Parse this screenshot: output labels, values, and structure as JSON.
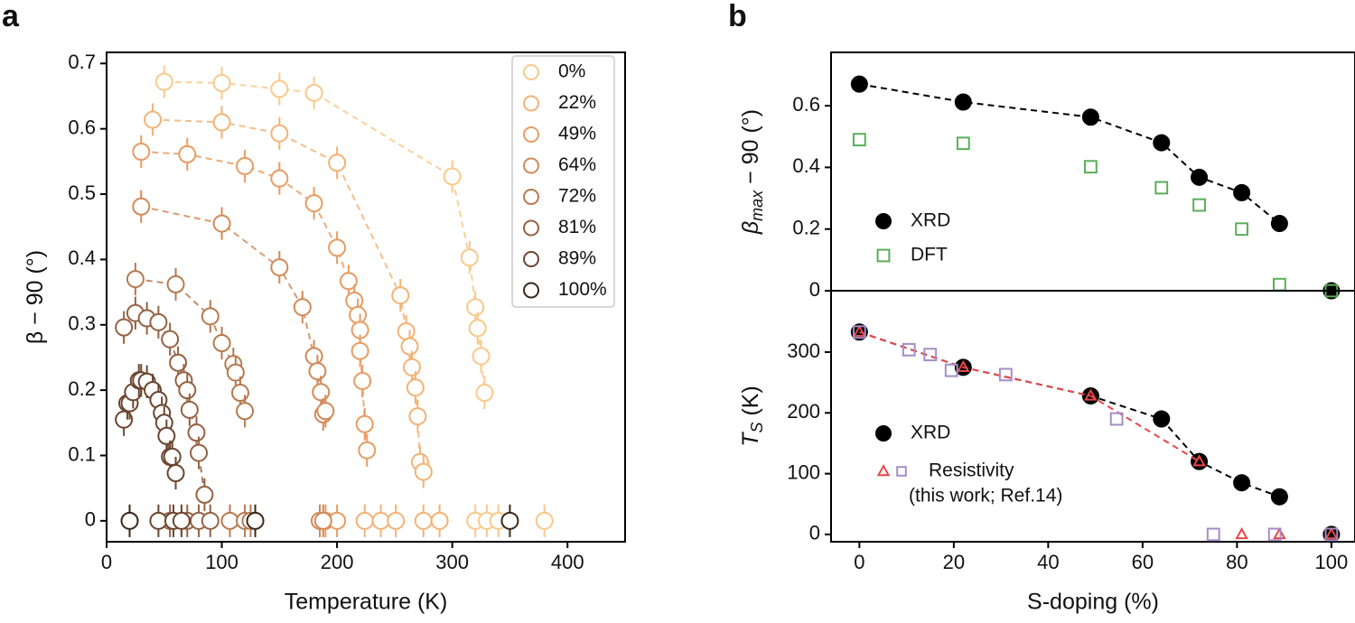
{
  "chart_data": [
    {
      "type": "scatter",
      "panel_label": "a",
      "xlabel": "Temperature (K)",
      "ylabel": "β − 90 (°)",
      "xlim": [
        0,
        450
      ],
      "ylim": [
        -0.032,
        0.717
      ],
      "xticks": [
        0,
        100,
        200,
        300,
        400
      ],
      "yticks": [
        0.0,
        {
          "value": 0.1,
          "label": "0.1"
        },
        {
          "value": 0.2,
          "label": "0.2"
        },
        {
          "value": 0.3,
          "label": "0.3"
        },
        {
          "value": 0.4,
          "label": "0.4"
        },
        {
          "value": 0.5,
          "label": "0.5"
        },
        {
          "value": 0.6,
          "label": "0.6"
        },
        {
          "value": 0.7,
          "label": "0.7"
        }
      ],
      "legend": "upper right",
      "series": [
        {
          "name": "0%",
          "color": "#f9c98a",
          "marker": "circle",
          "fill": "#ffffff",
          "line": "dashed",
          "yerr": 0.025,
          "x": [
            50,
            100,
            150,
            180,
            300,
            315,
            320,
            322,
            325,
            328,
            320,
            330,
            340,
            380
          ],
          "values": [
            0.672,
            0.67,
            0.661,
            0.655,
            0.527,
            0.403,
            0.327,
            0.295,
            0.252,
            0.196,
            0,
            0,
            0,
            0
          ]
        },
        {
          "name": "22%",
          "color": "#f4b274",
          "marker": "circle",
          "fill": "#ffffff",
          "line": "dashed",
          "yerr": 0.025,
          "x": [
            40,
            100,
            150,
            200,
            255,
            260,
            263,
            265,
            268,
            270,
            272,
            275,
            224,
            238,
            251,
            275,
            289
          ],
          "values": [
            0.614,
            0.61,
            0.593,
            0.548,
            0.345,
            0.29,
            0.267,
            0.235,
            0.204,
            0.16,
            0.09,
            0.075,
            0,
            0,
            0,
            0,
            0
          ]
        },
        {
          "name": "49%",
          "color": "#e89c62",
          "marker": "circle",
          "fill": "#ffffff",
          "line": "dashed",
          "yerr": 0.025,
          "x": [
            30,
            70,
            120,
            150,
            180,
            200,
            210,
            215,
            218,
            220,
            220,
            222,
            224,
            226,
            190,
            200
          ],
          "values": [
            0.565,
            0.561,
            0.543,
            0.524,
            0.486,
            0.418,
            0.367,
            0.337,
            0.315,
            0.292,
            0.26,
            0.214,
            0.148,
            0.108,
            0,
            0
          ]
        },
        {
          "name": "64%",
          "color": "#d18a58",
          "marker": "circle",
          "fill": "#ffffff",
          "line": "dashed",
          "yerr": 0.025,
          "x": [
            30,
            100,
            150,
            170,
            180,
            183,
            186,
            188,
            190,
            185,
            188
          ],
          "values": [
            0.481,
            0.455,
            0.388,
            0.327,
            0.252,
            0.229,
            0.197,
            0.163,
            0.168,
            0,
            0
          ]
        },
        {
          "name": "72%",
          "color": "#b77a50",
          "marker": "circle",
          "fill": "#ffffff",
          "line": "dashed",
          "yerr": 0.025,
          "x": [
            25,
            60,
            90,
            100,
            110,
            112,
            116,
            120,
            107,
            120,
            125
          ],
          "values": [
            0.37,
            0.362,
            0.313,
            0.272,
            0.24,
            0.227,
            0.196,
            0.168,
            0,
            0,
            0
          ]
        },
        {
          "name": "81%",
          "color": "#956244",
          "marker": "circle",
          "fill": "#ffffff",
          "line": "dashed",
          "yerr": 0.025,
          "x": [
            15,
            25,
            35,
            45,
            55,
            62,
            67,
            70,
            72,
            78,
            80,
            85,
            55,
            70,
            80,
            90
          ],
          "values": [
            0.296,
            0.318,
            0.31,
            0.304,
            0.278,
            0.242,
            0.215,
            0.2,
            0.17,
            0.135,
            0.104,
            0.04,
            0,
            0,
            0,
            0
          ]
        },
        {
          "name": "89%",
          "color": "#6b4630",
          "marker": "circle",
          "fill": "#ffffff",
          "line": "dashed",
          "yerr": 0.025,
          "x": [
            15,
            18,
            20,
            23,
            28,
            30,
            35,
            40,
            45,
            48,
            50,
            52,
            55,
            57,
            60,
            45,
            58,
            65
          ],
          "values": [
            0.155,
            0.18,
            0.18,
            0.197,
            0.215,
            0.215,
            0.213,
            0.2,
            0.185,
            0.165,
            0.15,
            0.13,
            0.098,
            0.098,
            0.073,
            0,
            0,
            0
          ]
        },
        {
          "name": "100%",
          "color": "#3a271a",
          "marker": "circle",
          "fill": "#ffffff",
          "yerr": 0.025,
          "x": [
            20,
            129,
            350
          ],
          "values": [
            0,
            0,
            0
          ]
        }
      ]
    },
    {
      "type": "scatter",
      "panel_label": "b",
      "ylabel": "β",
      "ylabel_sub": "max",
      "ylabel_tail": " − 90 (°)",
      "xlim": [
        -6,
        105
      ],
      "ylim": [
        0,
        0.773
      ],
      "yticks": [
        0.0,
        {
          "value": 0.2,
          "label": "0.2"
        },
        {
          "value": 0.4,
          "label": "0.4"
        },
        {
          "value": 0.6,
          "label": "0.6"
        }
      ],
      "series": [
        {
          "name": "XRD",
          "color": "#000000",
          "marker": "circle",
          "fill": "#000000",
          "line": "dashed",
          "x": [
            0,
            22,
            49,
            64,
            72,
            81,
            89,
            100
          ],
          "values": [
            0.67,
            0.612,
            0.563,
            0.48,
            0.368,
            0.318,
            0.218,
            0
          ]
        },
        {
          "name": "DFT",
          "color": "#5aae5a",
          "marker": "square",
          "fill": "none",
          "x": [
            0,
            22,
            49,
            64,
            72,
            81,
            89,
            100
          ],
          "values": [
            0.49,
            0.478,
            0.402,
            0.334,
            0.278,
            0.2,
            0.02,
            0
          ]
        }
      ]
    },
    {
      "type": "scatter",
      "xlabel": "S-doping (%)",
      "ylabel": "T",
      "ylabel_sub": "S",
      "ylabel_tail": " (K)",
      "xlim": [
        -6,
        105
      ],
      "ylim": [
        -12,
        401
      ],
      "xticks": [
        0,
        20,
        40,
        60,
        80,
        100
      ],
      "yticks": [
        0,
        100,
        200,
        300
      ],
      "legend_note": "(this work; Ref.14)",
      "series": [
        {
          "name": "XRD",
          "color": "#000000",
          "marker": "circle",
          "fill": "#000000",
          "line": "dashed",
          "x": [
            0,
            22,
            49,
            64,
            72,
            81,
            89,
            100
          ],
          "values": [
            333,
            275,
            228,
            190,
            120,
            85,
            62,
            0
          ]
        },
        {
          "name": "Resistivity",
          "color": "#e8474a",
          "marker": "triangle",
          "fill": "none",
          "line": "dashed",
          "x": [
            0,
            22,
            49,
            72,
            81,
            89,
            100
          ],
          "values": [
            333,
            275,
            228,
            120,
            0,
            0,
            0
          ]
        },
        {
          "color": "#a58cc8",
          "marker": "square",
          "fill": "none",
          "x": [
            0,
            10.5,
            15,
            19.5,
            31,
            54.5,
            75,
            88,
            100
          ],
          "values": [
            333,
            304,
            296,
            270,
            263,
            190,
            0,
            0,
            0
          ]
        }
      ]
    }
  ]
}
